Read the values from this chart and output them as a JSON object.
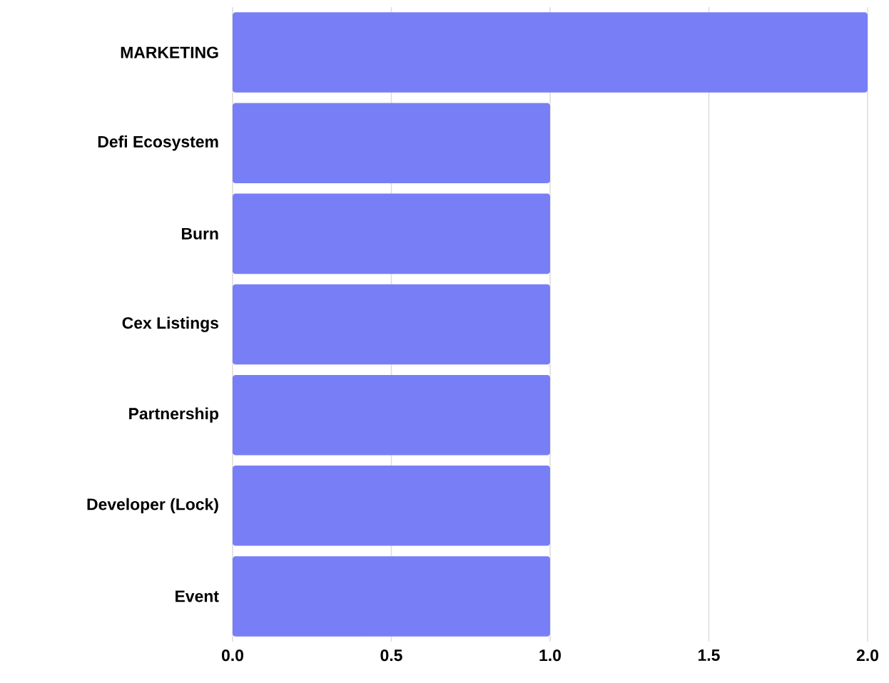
{
  "chart_data": {
    "type": "bar",
    "orientation": "horizontal",
    "categories": [
      "MARKETING",
      "Defi Ecosystem",
      "Burn",
      "Cex Listings",
      "Partnership",
      "Developer (Lock)",
      "Event"
    ],
    "values": [
      2.0,
      1.0,
      1.0,
      1.0,
      1.0,
      1.0,
      1.0
    ],
    "color": "#787ff6",
    "xlim": [
      0,
      2
    ],
    "xticks": [
      {
        "value": 0,
        "label": "0.0"
      },
      {
        "value": 0.5,
        "label": "0.5"
      },
      {
        "value": 1,
        "label": "1.0"
      },
      {
        "value": 1.5,
        "label": "1.5"
      },
      {
        "value": 2,
        "label": "2.0"
      }
    ],
    "grid": "x"
  }
}
